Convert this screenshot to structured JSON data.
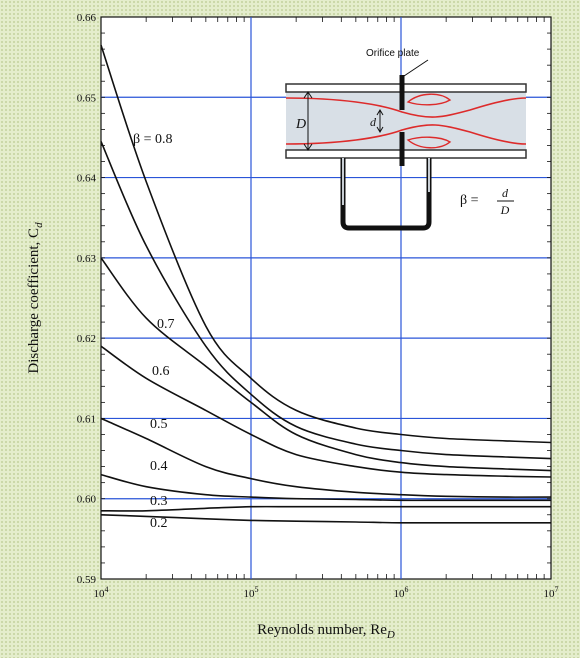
{
  "chart_data": {
    "type": "line",
    "title": "",
    "xlabel": "Reynolds number, Re",
    "xlabel_sub": "D",
    "ylabel": "Discharge coefficient, C",
    "ylabel_sub": "d",
    "x_scale": "log",
    "xlim": [
      10000,
      10000000
    ],
    "ylim": [
      0.59,
      0.66
    ],
    "x_ticks": [
      {
        "value": 10000,
        "base": "10",
        "exp": "4"
      },
      {
        "value": 100000,
        "base": "10",
        "exp": "5"
      },
      {
        "value": 1000000,
        "base": "10",
        "exp": "6"
      },
      {
        "value": 10000000,
        "base": "10",
        "exp": "7"
      }
    ],
    "y_ticks": [
      "0.59",
      "0.60",
      "0.61",
      "0.62",
      "0.63",
      "0.64",
      "0.65",
      "0.66"
    ],
    "grid": true,
    "series": [
      {
        "name": "β = 0.8",
        "x": [
          10000,
          20000,
          50000,
          100000,
          200000,
          500000,
          1000000,
          2000000,
          5000000,
          10000000
        ],
        "y": [
          0.6565,
          0.6395,
          0.6215,
          0.615,
          0.611,
          0.6088,
          0.608,
          0.6075,
          0.6072,
          0.607
        ]
      },
      {
        "name": "0.7",
        "x": [
          10000,
          20000,
          50000,
          100000,
          200000,
          500000,
          1000000,
          2000000,
          5000000,
          10000000
        ],
        "y": [
          0.6445,
          0.6315,
          0.619,
          0.613,
          0.609,
          0.6068,
          0.606,
          0.6055,
          0.6052,
          0.605
        ]
      },
      {
        "name": "0.6",
        "x": [
          10000,
          20000,
          50000,
          100000,
          200000,
          500000,
          1000000,
          2000000,
          5000000,
          10000000
        ],
        "y": [
          0.63,
          0.6225,
          0.6165,
          0.612,
          0.608,
          0.6055,
          0.6045,
          0.604,
          0.6037,
          0.6035
        ]
      },
      {
        "name": "0.5",
        "x": [
          10000,
          20000,
          50000,
          100000,
          200000,
          500000,
          1000000,
          2000000,
          5000000,
          10000000
        ],
        "y": [
          0.619,
          0.615,
          0.611,
          0.608,
          0.6055,
          0.604,
          0.6033,
          0.603,
          0.6028,
          0.6027
        ]
      },
      {
        "name": "0.4",
        "x": [
          10000,
          20000,
          50000,
          100000,
          200000,
          500000,
          1000000,
          2000000,
          5000000,
          10000000
        ],
        "y": [
          0.61,
          0.6075,
          0.604,
          0.6025,
          0.6015,
          0.6008,
          0.6005,
          0.6003,
          0.6002,
          0.6002
        ]
      },
      {
        "name": "0.3",
        "x": [
          10000,
          20000,
          50000,
          100000,
          200000,
          500000,
          1000000,
          2000000,
          5000000,
          10000000
        ],
        "y": [
          0.603,
          0.6015,
          0.6005,
          0.6002,
          0.6,
          0.5999,
          0.5998,
          0.5998,
          0.5998,
          0.5998
        ]
      },
      {
        "name": "0.2",
        "x": [
          10000,
          20000,
          50000,
          100000,
          200000,
          500000,
          1000000,
          2000000,
          5000000,
          10000000
        ],
        "y": [
          0.5985,
          0.5985,
          0.5988,
          0.599,
          0.599,
          0.599,
          0.599,
          0.599,
          0.599,
          0.599
        ]
      },
      {
        "name": "",
        "x": [
          10000,
          20000,
          50000,
          100000,
          200000,
          500000,
          1000000,
          2000000,
          5000000,
          10000000
        ],
        "y": [
          0.598,
          0.5978,
          0.5975,
          0.5973,
          0.5972,
          0.5971,
          0.597,
          0.597,
          0.597,
          0.597
        ]
      }
    ],
    "inset": {
      "label_plate": "Orifice plate",
      "label_D": "D",
      "label_d": "d",
      "beta_prefix": "β =",
      "beta_num": "d",
      "beta_den": "D",
      "colors": {
        "flow_boundary": "#dd2b2b",
        "pipe": "#333333",
        "fluid": "#d8dfe6"
      }
    }
  },
  "colors": {
    "grid": "#2a55d8",
    "curve": "#111111",
    "plot_bg": "#ffffff"
  }
}
